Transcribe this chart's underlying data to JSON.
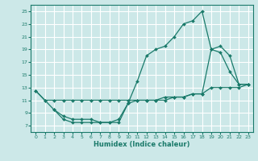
{
  "title": "",
  "xlabel": "Humidex (Indice chaleur)",
  "bg_color": "#cce8e8",
  "grid_color": "#ffffff",
  "line_color": "#1a7a6a",
  "xlim": [
    -0.5,
    23.5
  ],
  "ylim": [
    6.0,
    26.0
  ],
  "xticks": [
    0,
    1,
    2,
    3,
    4,
    5,
    6,
    7,
    8,
    9,
    10,
    11,
    12,
    13,
    14,
    15,
    16,
    17,
    18,
    19,
    20,
    21,
    22,
    23
  ],
  "yticks": [
    7,
    9,
    11,
    13,
    15,
    17,
    19,
    21,
    23,
    25
  ],
  "series": [
    {
      "x": [
        0,
        1,
        2,
        3,
        4,
        5,
        6,
        7,
        8,
        9,
        10,
        11,
        12,
        13,
        14,
        15,
        16,
        17,
        18,
        19,
        20,
        21,
        22,
        23
      ],
      "y": [
        12.5,
        11.0,
        9.5,
        8.0,
        7.5,
        7.5,
        7.5,
        7.5,
        7.5,
        7.5,
        10.5,
        14.0,
        18.0,
        19.0,
        19.5,
        21.0,
        23.0,
        23.5,
        25.0,
        19.0,
        18.5,
        15.5,
        13.5,
        13.5
      ]
    },
    {
      "x": [
        0,
        1,
        2,
        3,
        4,
        5,
        6,
        7,
        8,
        9,
        10,
        11,
        12,
        13,
        14,
        15,
        16,
        17,
        18,
        19,
        20,
        21,
        22,
        23
      ],
      "y": [
        12.5,
        11.0,
        11.0,
        11.0,
        11.0,
        11.0,
        11.0,
        11.0,
        11.0,
        11.0,
        11.0,
        11.0,
        11.0,
        11.0,
        11.0,
        11.5,
        11.5,
        12.0,
        12.0,
        13.0,
        13.0,
        13.0,
        13.0,
        13.5
      ]
    },
    {
      "x": [
        2,
        3,
        4,
        5,
        6,
        7,
        8,
        9,
        10,
        11,
        12,
        13,
        14,
        15,
        16,
        17,
        18,
        19,
        20,
        21,
        22,
        23
      ],
      "y": [
        9.5,
        8.5,
        8.0,
        8.0,
        8.0,
        7.5,
        7.5,
        8.0,
        10.5,
        11.0,
        11.0,
        11.0,
        11.5,
        11.5,
        11.5,
        12.0,
        12.0,
        19.0,
        19.5,
        18.0,
        13.5,
        13.5
      ]
    }
  ]
}
